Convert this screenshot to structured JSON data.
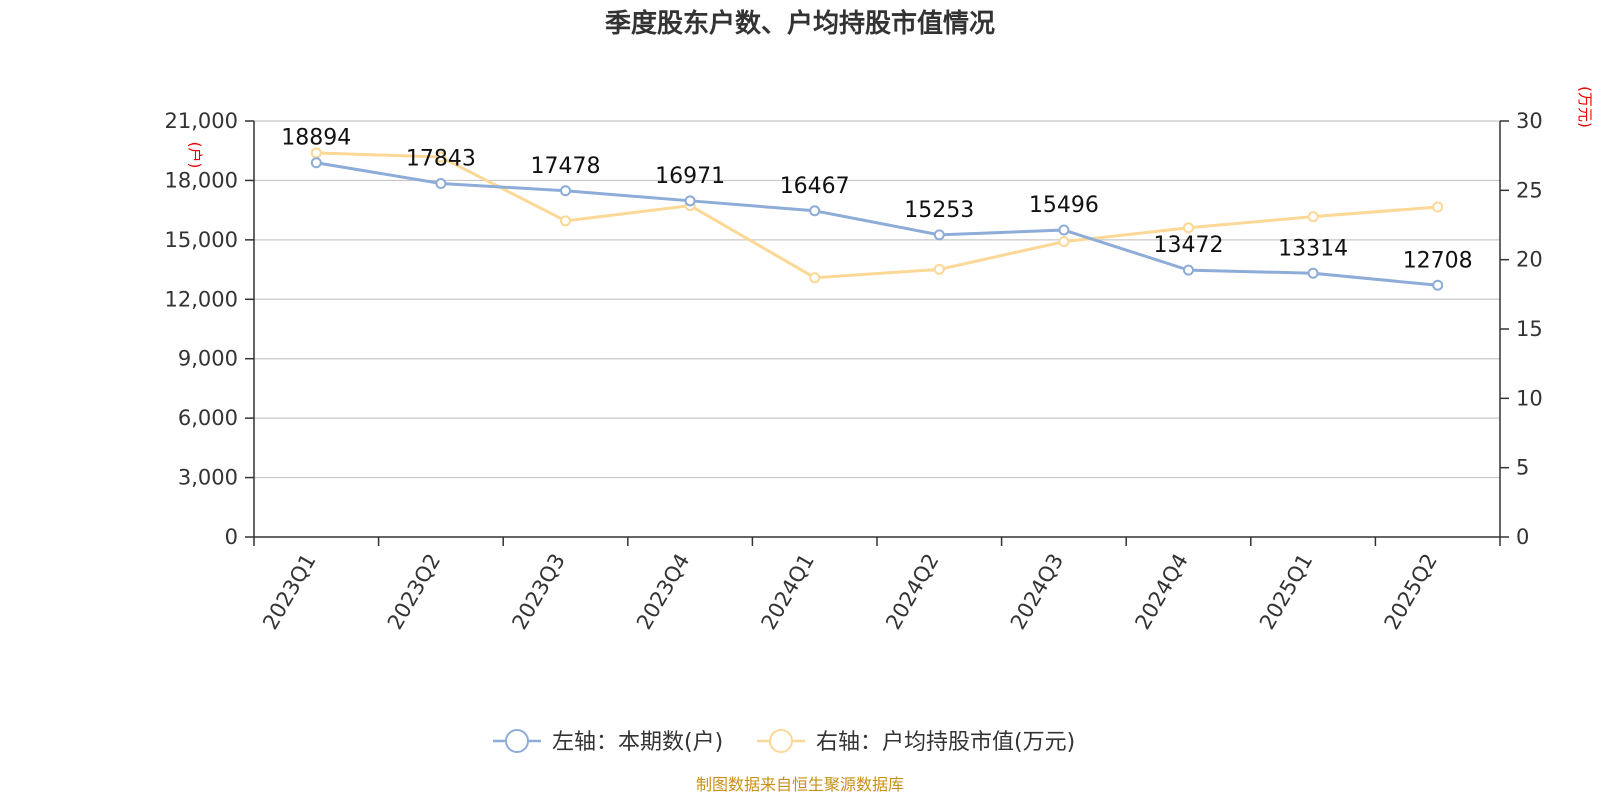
{
  "colors": {
    "left_series": "#8eacd8",
    "right_series": "#fcd896",
    "unit_color": "#e60000",
    "source_color": "#c8901a"
  },
  "chart_data": {
    "type": "line",
    "title": "季度股东户数、户均持股市值情况",
    "categories": [
      "2023Q1",
      "2023Q2",
      "2023Q3",
      "2023Q4",
      "2024Q1",
      "2024Q2",
      "2024Q3",
      "2024Q4",
      "2025Q1",
      "2025Q2"
    ],
    "left_axis": {
      "unit": "(户)",
      "ylim": [
        0,
        21000
      ],
      "ticks": [
        "0",
        "3,000",
        "6,000",
        "9,000",
        "12,000",
        "15,000",
        "18,000",
        "21,000"
      ],
      "tick_values": [
        0,
        3000,
        6000,
        9000,
        12000,
        15000,
        18000,
        21000
      ]
    },
    "right_axis": {
      "unit": "(万元)",
      "ylim": [
        0,
        30
      ],
      "ticks": [
        "0",
        "5",
        "10",
        "15",
        "20",
        "25",
        "30"
      ],
      "tick_values": [
        0,
        5,
        10,
        15,
        20,
        25,
        30
      ]
    },
    "series": [
      {
        "name": "左轴：本期数(户)",
        "axis": "left",
        "values": [
          18894,
          17843,
          17478,
          16971,
          16467,
          15253,
          15496,
          13472,
          13314,
          12708
        ],
        "labels": [
          "18894",
          "17843",
          "17478",
          "16971",
          "16467",
          "15253",
          "15496",
          "13472",
          "13314",
          "12708"
        ]
      },
      {
        "name": "右轴：户均持股市值(万元)",
        "axis": "right",
        "values": [
          27.7,
          27.4,
          22.8,
          23.9,
          18.7,
          19.3,
          21.3,
          22.3,
          23.1,
          23.8
        ]
      }
    ],
    "grid": true,
    "legend": "bottom-center"
  },
  "footer": {
    "source": "制图数据来自恒生聚源数据库"
  }
}
